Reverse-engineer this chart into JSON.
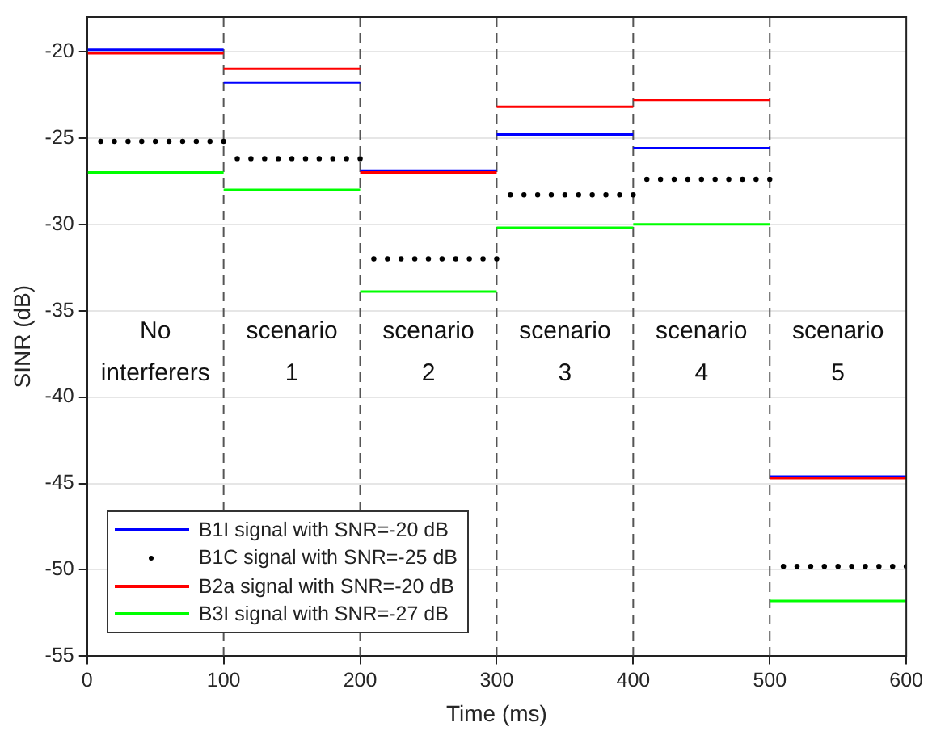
{
  "chart_data": {
    "type": "line",
    "xlabel": "Time (ms)",
    "ylabel": "SINR (dB)",
    "xlim": [
      0,
      600
    ],
    "xticks": [
      0,
      100,
      200,
      300,
      400,
      500,
      600
    ],
    "ylim": [
      -55,
      -18
    ],
    "yticks": [
      -55,
      -50,
      -45,
      -40,
      -35,
      -30,
      -25,
      -20
    ],
    "grid": "y",
    "legend": "bottom left",
    "line_style": "solid",
    "marker": "none",
    "series": [
      {
        "name": "B1I signal with SNR=-20 dB",
        "color": "#0000ff",
        "x": [
          0,
          100,
          100,
          200,
          200,
          300,
          300,
          400,
          400,
          500,
          500,
          600
        ],
        "values": [
          -19.9,
          -19.9,
          -21.8,
          -21.8,
          -26.9,
          -26.9,
          -24.8,
          -24.8,
          -25.6,
          -25.6,
          -44.6,
          -44.6
        ]
      },
      {
        "name": "B1C signal with SNR=-25 dB",
        "type": "scatter",
        "marker": "circle",
        "color": "#000000",
        "x": [
          10,
          20,
          30,
          40,
          50,
          60,
          70,
          80,
          90,
          100,
          110,
          120,
          130,
          140,
          150,
          160,
          170,
          180,
          190,
          200,
          210,
          220,
          230,
          240,
          250,
          260,
          270,
          280,
          290,
          300,
          310,
          320,
          330,
          340,
          350,
          360,
          370,
          380,
          390,
          400,
          410,
          420,
          430,
          440,
          450,
          460,
          470,
          480,
          490,
          500,
          510,
          520,
          530,
          540,
          550,
          560,
          570,
          580,
          590,
          600
        ],
        "values": [
          -25.2,
          -25.2,
          -25.2,
          -25.2,
          -25.2,
          -25.2,
          -25.2,
          -25.2,
          -25.2,
          -25.2,
          -26.2,
          -26.2,
          -26.2,
          -26.2,
          -26.2,
          -26.2,
          -26.2,
          -26.2,
          -26.2,
          -26.2,
          -32,
          -32,
          -32,
          -32,
          -32,
          -32,
          -32,
          -32,
          -32,
          -32,
          -28.3,
          -28.3,
          -28.3,
          -28.3,
          -28.3,
          -28.3,
          -28.3,
          -28.3,
          -28.3,
          -28.3,
          -27.4,
          -27.4,
          -27.4,
          -27.4,
          -27.4,
          -27.4,
          -27.4,
          -27.4,
          -27.4,
          -27.4,
          -49.8,
          -49.8,
          -49.8,
          -49.8,
          -49.8,
          -49.8,
          -49.8,
          -49.8,
          -49.8,
          -49.8
        ]
      },
      {
        "name": "B2a signal with SNR=-20 dB",
        "color": "#ff0000",
        "x": [
          0,
          100,
          100,
          200,
          200,
          300,
          300,
          400,
          400,
          500,
          500,
          600
        ],
        "values": [
          -20.1,
          -20.1,
          -21,
          -21,
          -27,
          -27,
          -23.2,
          -23.2,
          -22.8,
          -22.8,
          -44.7,
          -44.7
        ]
      },
      {
        "name": "B3I signal with SNR=-27 dB",
        "color": "#00ff00",
        "x": [
          0,
          100,
          100,
          200,
          200,
          300,
          300,
          400,
          400,
          500,
          500,
          600
        ],
        "values": [
          -27,
          -27,
          -28,
          -28,
          -33.9,
          -33.9,
          -30.2,
          -30.2,
          -30,
          -30,
          -51.8,
          -51.8
        ]
      }
    ],
    "ref_lines": [
      {
        "axis": "x",
        "value": 100,
        "color": "#555555",
        "line_style": "dashed"
      },
      {
        "axis": "x",
        "value": 200,
        "color": "#555555",
        "line_style": "dashed"
      },
      {
        "axis": "x",
        "value": 300,
        "color": "#555555",
        "line_style": "dashed"
      },
      {
        "axis": "x",
        "value": 400,
        "color": "#555555",
        "line_style": "dashed"
      },
      {
        "axis": "x",
        "value": 500,
        "color": "#555555",
        "line_style": "dashed"
      }
    ],
    "annotations": [
      "No interferers",
      "scenario 1",
      "scenario 2",
      "scenario 3",
      "scenario 4",
      "scenario 5"
    ]
  }
}
